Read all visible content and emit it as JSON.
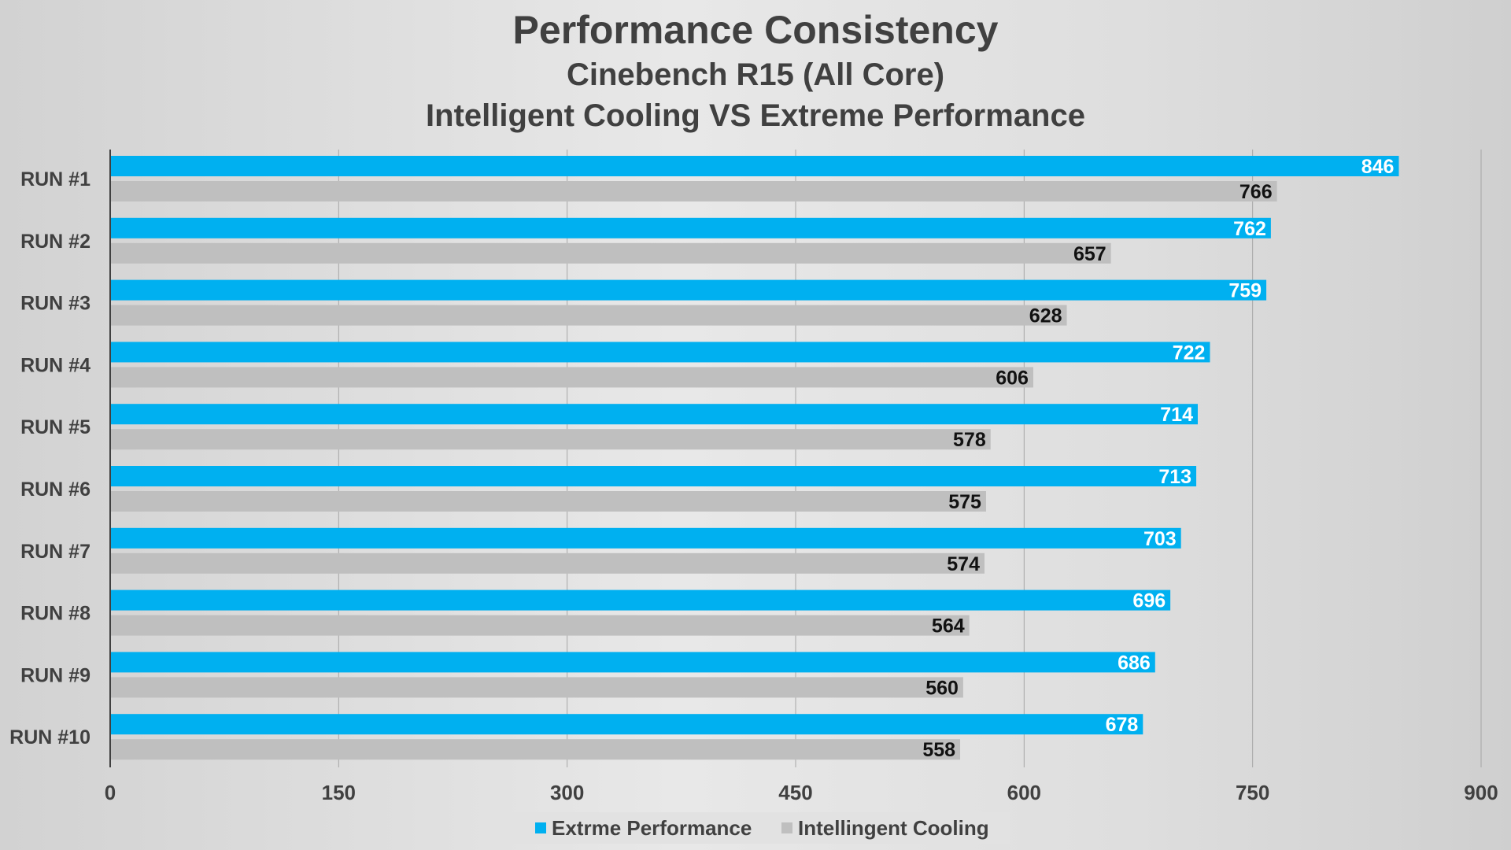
{
  "chart_data": {
    "type": "bar",
    "orientation": "horizontal",
    "title": "Performance Consistency",
    "subtitle": "Cinebench R15 (All Core)",
    "subtitle2": "Intelligent Cooling VS Extreme Performance",
    "categories": [
      "RUN #1",
      "RUN #2",
      "RUN #3",
      "RUN #4",
      "RUN #5",
      "RUN #6",
      "RUN #7",
      "RUN #8",
      "RUN #9",
      "RUN #10"
    ],
    "series": [
      {
        "name": "Extrme Performance",
        "color": "#00b0f0",
        "values": [
          846,
          762,
          759,
          722,
          714,
          713,
          703,
          696,
          686,
          678
        ]
      },
      {
        "name": "Intellingent Cooling",
        "color": "#bfbfbf",
        "values": [
          766,
          657,
          628,
          606,
          578,
          575,
          574,
          564,
          560,
          558
        ]
      }
    ],
    "xlim": [
      0,
      900
    ],
    "xticks": [
      0,
      150,
      300,
      450,
      600,
      750,
      900
    ],
    "grid": true,
    "legend": "bottom"
  }
}
